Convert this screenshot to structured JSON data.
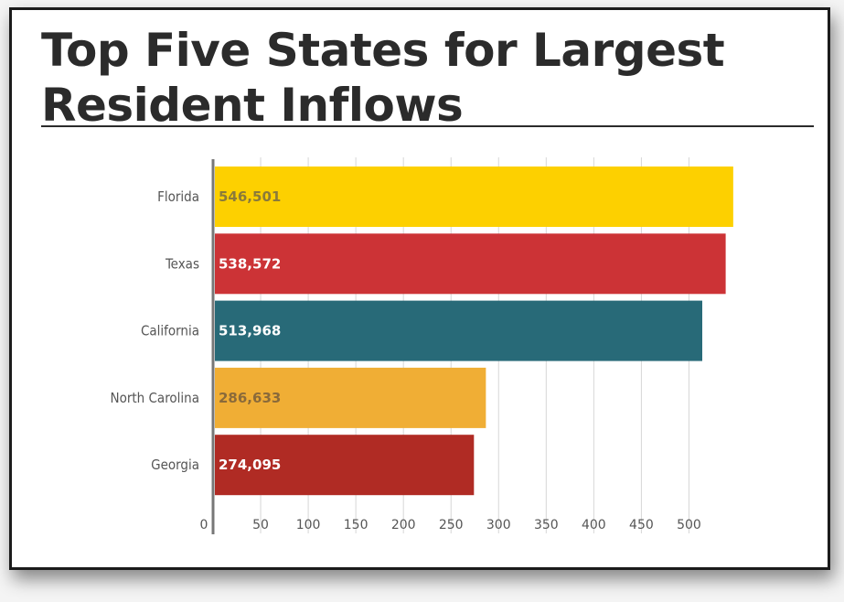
{
  "chart_data": {
    "type": "bar",
    "orientation": "horizontal",
    "title": "Top Five States for Largest Resident Inflows",
    "categories": [
      "Florida",
      "Texas",
      "California",
      "North Carolina",
      "Georgia"
    ],
    "values": [
      546501,
      538572,
      513968,
      286633,
      274095
    ],
    "value_labels": [
      "546,501",
      "538,572",
      "513,968",
      "286,633",
      "274,095"
    ],
    "colors": [
      "#fdd000",
      "#cc3336",
      "#286a78",
      "#f0ae35",
      "#b02b24"
    ],
    "label_colors": [
      "#8a7a3a",
      "#ffffff",
      "#ffffff",
      "#8a6a3a",
      "#ffffff"
    ],
    "x_ticks": [
      0,
      50,
      100,
      150,
      200,
      250,
      300,
      350,
      400,
      450,
      500
    ],
    "tick_labels": [
      "0",
      "50",
      "100",
      "150",
      "200",
      "250",
      "300",
      "350",
      "400",
      "450",
      "500"
    ],
    "xlim": [
      0,
      550
    ],
    "x_unit_multiplier": 1000,
    "grid": true,
    "legend": "none"
  }
}
